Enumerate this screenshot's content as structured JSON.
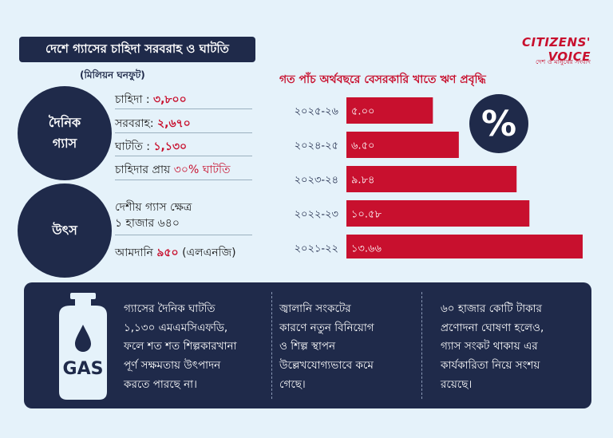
{
  "header": {
    "title": "দেশে গ্যাসের চাহিদা সরবরাহ ও ঘাটতি",
    "unit": "(মিলিয়ন ঘনফুট)"
  },
  "daily_gas": {
    "label_line1": "দৈনিক",
    "label_line2": "গ্যাস",
    "demand_label": "চাহিদা : ",
    "demand_value": "৩,৮০০",
    "supply_label": "সরবরাহ: ",
    "supply_value": "২,৬৭০",
    "deficit_label": "ঘাটতি : ",
    "deficit_value": "১,১৩০",
    "deficit_share_prefix": "চাহিদার প্রায় ",
    "deficit_share_value": "৩০% ঘাটতি"
  },
  "source": {
    "label": "উৎস",
    "domestic_label": "দেশীয় গ্যাস ক্ষেত্র",
    "domestic_value": "১ হাজার ৬৪০",
    "import_prefix": "আমদানি ",
    "import_value": "৯৫০",
    "import_suffix": " (এলএনজি)"
  },
  "logo": {
    "name": "CITIZENS' VOICE",
    "tagline": "দেশ ও মানুষের সংবাদ"
  },
  "percent_symbol": "%",
  "colors": {
    "navy": "#1f2a4a",
    "red": "#c8102e",
    "background": "#e5f2fa"
  },
  "chart_data": {
    "type": "bar",
    "orientation": "horizontal",
    "title": "গত পাঁচ অর্থবছরে বেসরকারি খাতে ঋণ প্রবৃদ্ধি",
    "categories": [
      "২০২৫-২৬",
      "২০২৪-২৫",
      "২০২৩-২৪",
      "২০২২-২৩",
      "২০২১-২২"
    ],
    "values": [
      5.0,
      6.5,
      9.84,
      10.58,
      13.66
    ],
    "value_labels": [
      "৫.০০",
      "৬.৫০",
      "৯.৮৪",
      "১০.৫৮",
      "১৩.৬৬"
    ],
    "xlim": [
      0,
      13.66
    ],
    "bar_color": "#c8102e",
    "grid": false,
    "legend": "none"
  },
  "info": {
    "icon": "gas-cylinder-icon",
    "cylinder_label": "GAS",
    "col1": [
      "গ্যাসের দৈনিক ঘাটতি",
      "১,১৩০ এমএমসিএফডি,",
      "ফলে শত শত শিল্পকারখানা",
      "পূর্ণ সক্ষমতায় উৎপাদন",
      "করতে পারছে না।"
    ],
    "col2": [
      "জ্বালানি সংকটের",
      "কারণে নতুন বিনিয়োগ",
      "ও শিল্প স্থাপন",
      "উল্লেখযোগ্যভাবে কমে",
      "গেছে।"
    ],
    "col3": [
      "৬০ হাজার কোটি টাকার",
      "প্রণোদনা ঘোষণা হলেও,",
      "গ্যাস সংকট থাকায় এর",
      "কার্যকারিতা নিয়ে সংশয়",
      "রয়েছে।"
    ]
  }
}
